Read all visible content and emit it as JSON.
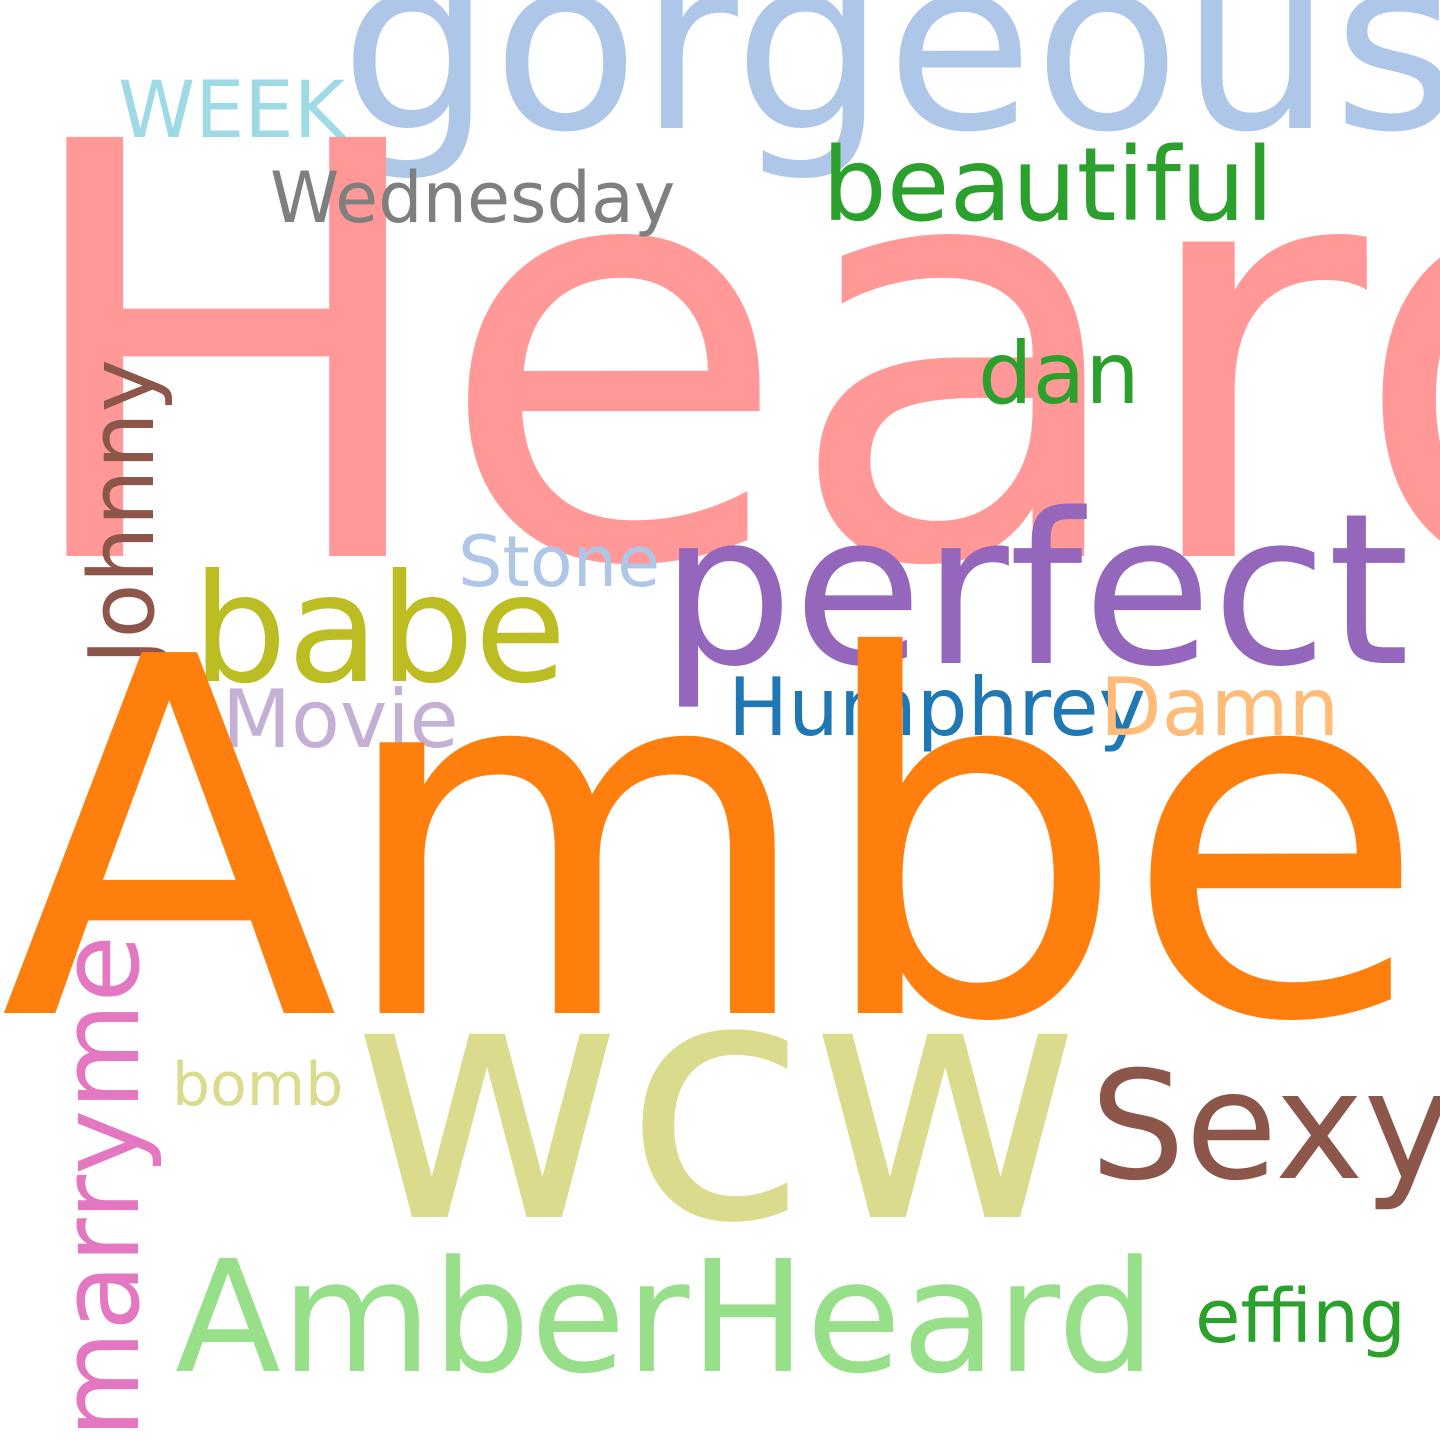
{
  "words": {
    "heard": {
      "text": "Heard",
      "color": "#ff9896"
    },
    "gorgeous": {
      "text": "gorgeous",
      "color": "#aec7e8"
    },
    "week": {
      "text": "WEEK",
      "color": "#9edae5"
    },
    "wednesday": {
      "text": "Wednesday",
      "color": "#7f7f7f"
    },
    "beautiful": {
      "text": "beautiful",
      "color": "#2ca02c"
    },
    "dan": {
      "text": "dan",
      "color": "#2ca02c"
    },
    "johnny": {
      "text": "Johnny",
      "color": "#8c564b",
      "orientation": "vertical"
    },
    "stone": {
      "text": "Stone",
      "color": "#aec7e8"
    },
    "perfect": {
      "text": "perfect",
      "color": "#9467bd"
    },
    "babe": {
      "text": "babe",
      "color": "#bcbd22"
    },
    "movie": {
      "text": "Movie",
      "color": "#c5b0d5"
    },
    "humphrey": {
      "text": "Humphrey",
      "color": "#1f77b4"
    },
    "damn": {
      "text": "Damn",
      "color": "#ffbb78"
    },
    "amber": {
      "text": "Amber",
      "color": "#ff7f0e"
    },
    "wcw": {
      "text": "wcw",
      "color": "#dbdb8d"
    },
    "bomb": {
      "text": "bomb",
      "color": "#dbdb8d"
    },
    "sexy": {
      "text": "Sexy",
      "color": "#8c564b"
    },
    "marryme": {
      "text": "marryme",
      "color": "#e377c2",
      "orientation": "vertical"
    },
    "amberheard": {
      "text": "AmberHeard",
      "color": "#98df8a"
    },
    "effing": {
      "text": "effing",
      "color": "#2ca02c"
    }
  }
}
